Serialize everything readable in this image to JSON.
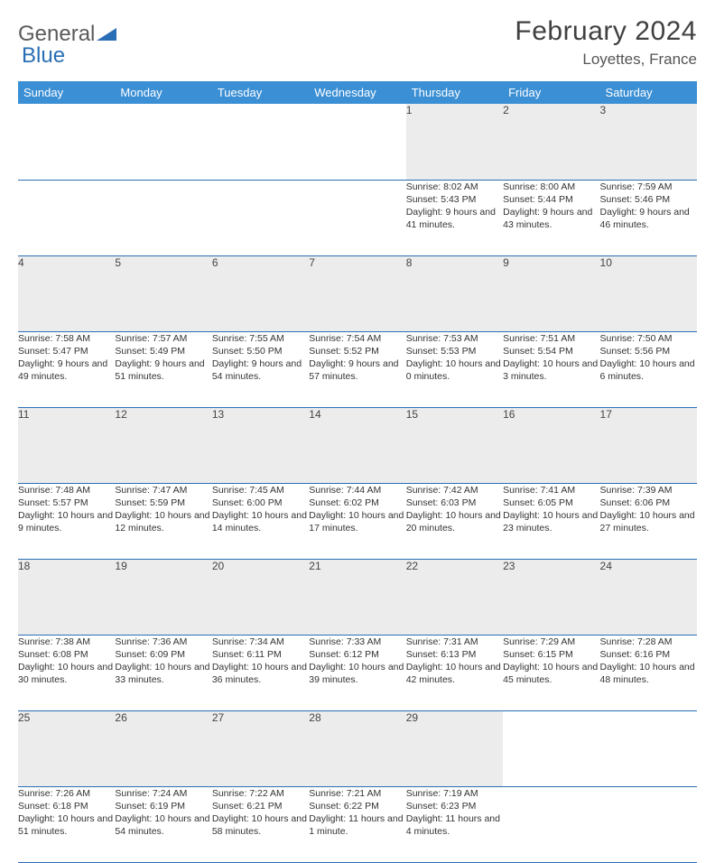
{
  "brand": {
    "text1": "General",
    "text2": "Blue"
  },
  "title": "February 2024",
  "location": "Loyettes, France",
  "colors": {
    "header_bg": "#3b8fd4",
    "border": "#2a6fb5",
    "daynum_bg": "#ececec",
    "text": "#333333"
  },
  "weekdays": [
    "Sunday",
    "Monday",
    "Tuesday",
    "Wednesday",
    "Thursday",
    "Friday",
    "Saturday"
  ],
  "weeks": [
    {
      "nums": [
        "",
        "",
        "",
        "",
        "1",
        "2",
        "3"
      ],
      "cells": [
        null,
        null,
        null,
        null,
        {
          "sunrise": "8:02 AM",
          "sunset": "5:43 PM",
          "daylight": "9 hours and 41 minutes."
        },
        {
          "sunrise": "8:00 AM",
          "sunset": "5:44 PM",
          "daylight": "9 hours and 43 minutes."
        },
        {
          "sunrise": "7:59 AM",
          "sunset": "5:46 PM",
          "daylight": "9 hours and 46 minutes."
        }
      ]
    },
    {
      "nums": [
        "4",
        "5",
        "6",
        "7",
        "8",
        "9",
        "10"
      ],
      "cells": [
        {
          "sunrise": "7:58 AM",
          "sunset": "5:47 PM",
          "daylight": "9 hours and 49 minutes."
        },
        {
          "sunrise": "7:57 AM",
          "sunset": "5:49 PM",
          "daylight": "9 hours and 51 minutes."
        },
        {
          "sunrise": "7:55 AM",
          "sunset": "5:50 PM",
          "daylight": "9 hours and 54 minutes."
        },
        {
          "sunrise": "7:54 AM",
          "sunset": "5:52 PM",
          "daylight": "9 hours and 57 minutes."
        },
        {
          "sunrise": "7:53 AM",
          "sunset": "5:53 PM",
          "daylight": "10 hours and 0 minutes."
        },
        {
          "sunrise": "7:51 AM",
          "sunset": "5:54 PM",
          "daylight": "10 hours and 3 minutes."
        },
        {
          "sunrise": "7:50 AM",
          "sunset": "5:56 PM",
          "daylight": "10 hours and 6 minutes."
        }
      ]
    },
    {
      "nums": [
        "11",
        "12",
        "13",
        "14",
        "15",
        "16",
        "17"
      ],
      "cells": [
        {
          "sunrise": "7:48 AM",
          "sunset": "5:57 PM",
          "daylight": "10 hours and 9 minutes."
        },
        {
          "sunrise": "7:47 AM",
          "sunset": "5:59 PM",
          "daylight": "10 hours and 12 minutes."
        },
        {
          "sunrise": "7:45 AM",
          "sunset": "6:00 PM",
          "daylight": "10 hours and 14 minutes."
        },
        {
          "sunrise": "7:44 AM",
          "sunset": "6:02 PM",
          "daylight": "10 hours and 17 minutes."
        },
        {
          "sunrise": "7:42 AM",
          "sunset": "6:03 PM",
          "daylight": "10 hours and 20 minutes."
        },
        {
          "sunrise": "7:41 AM",
          "sunset": "6:05 PM",
          "daylight": "10 hours and 23 minutes."
        },
        {
          "sunrise": "7:39 AM",
          "sunset": "6:06 PM",
          "daylight": "10 hours and 27 minutes."
        }
      ]
    },
    {
      "nums": [
        "18",
        "19",
        "20",
        "21",
        "22",
        "23",
        "24"
      ],
      "cells": [
        {
          "sunrise": "7:38 AM",
          "sunset": "6:08 PM",
          "daylight": "10 hours and 30 minutes."
        },
        {
          "sunrise": "7:36 AM",
          "sunset": "6:09 PM",
          "daylight": "10 hours and 33 minutes."
        },
        {
          "sunrise": "7:34 AM",
          "sunset": "6:11 PM",
          "daylight": "10 hours and 36 minutes."
        },
        {
          "sunrise": "7:33 AM",
          "sunset": "6:12 PM",
          "daylight": "10 hours and 39 minutes."
        },
        {
          "sunrise": "7:31 AM",
          "sunset": "6:13 PM",
          "daylight": "10 hours and 42 minutes."
        },
        {
          "sunrise": "7:29 AM",
          "sunset": "6:15 PM",
          "daylight": "10 hours and 45 minutes."
        },
        {
          "sunrise": "7:28 AM",
          "sunset": "6:16 PM",
          "daylight": "10 hours and 48 minutes."
        }
      ]
    },
    {
      "nums": [
        "25",
        "26",
        "27",
        "28",
        "29",
        "",
        ""
      ],
      "cells": [
        {
          "sunrise": "7:26 AM",
          "sunset": "6:18 PM",
          "daylight": "10 hours and 51 minutes."
        },
        {
          "sunrise": "7:24 AM",
          "sunset": "6:19 PM",
          "daylight": "10 hours and 54 minutes."
        },
        {
          "sunrise": "7:22 AM",
          "sunset": "6:21 PM",
          "daylight": "10 hours and 58 minutes."
        },
        {
          "sunrise": "7:21 AM",
          "sunset": "6:22 PM",
          "daylight": "11 hours and 1 minute."
        },
        {
          "sunrise": "7:19 AM",
          "sunset": "6:23 PM",
          "daylight": "11 hours and 4 minutes."
        },
        null,
        null
      ]
    }
  ]
}
